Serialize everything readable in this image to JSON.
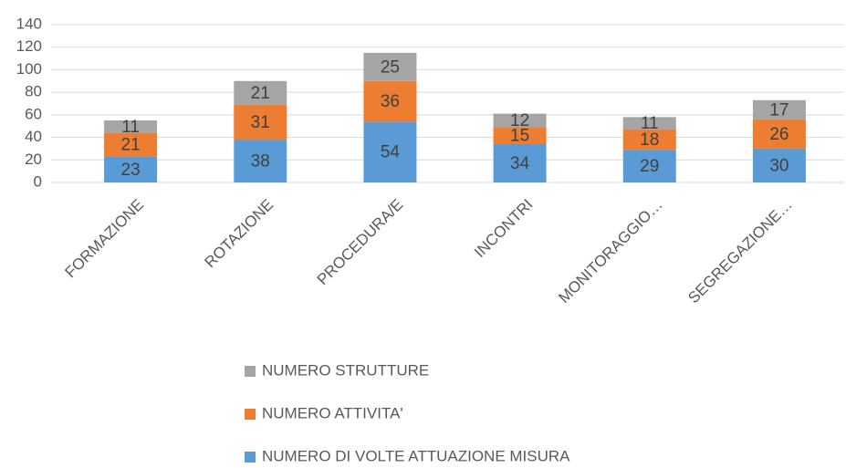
{
  "chart_data": {
    "type": "stacked_bar",
    "categories": [
      "FORMAZIONE",
      "ROTAZIONE",
      "PROCEDURA/E",
      "INCONTRI",
      "MONITORAGGIO…",
      "SEGREGAZIONE…"
    ],
    "series": [
      {
        "name": "NUMERO DI VOLTE ATTUAZIONE MISURA",
        "color": "#5b9bd5",
        "values": [
          23,
          38,
          54,
          34,
          29,
          30
        ]
      },
      {
        "name": "NUMERO ATTIVITA'",
        "color": "#ed7d31",
        "values": [
          21,
          31,
          36,
          15,
          18,
          26
        ]
      },
      {
        "name": "NUMERO STRUTTURE",
        "color": "#a5a5a5",
        "values": [
          11,
          21,
          25,
          12,
          11,
          17
        ]
      }
    ],
    "ylim": [
      0,
      140
    ],
    "yticks": [
      0,
      20,
      40,
      60,
      80,
      100,
      120,
      140
    ],
    "grid": true,
    "legend": "bottom"
  }
}
